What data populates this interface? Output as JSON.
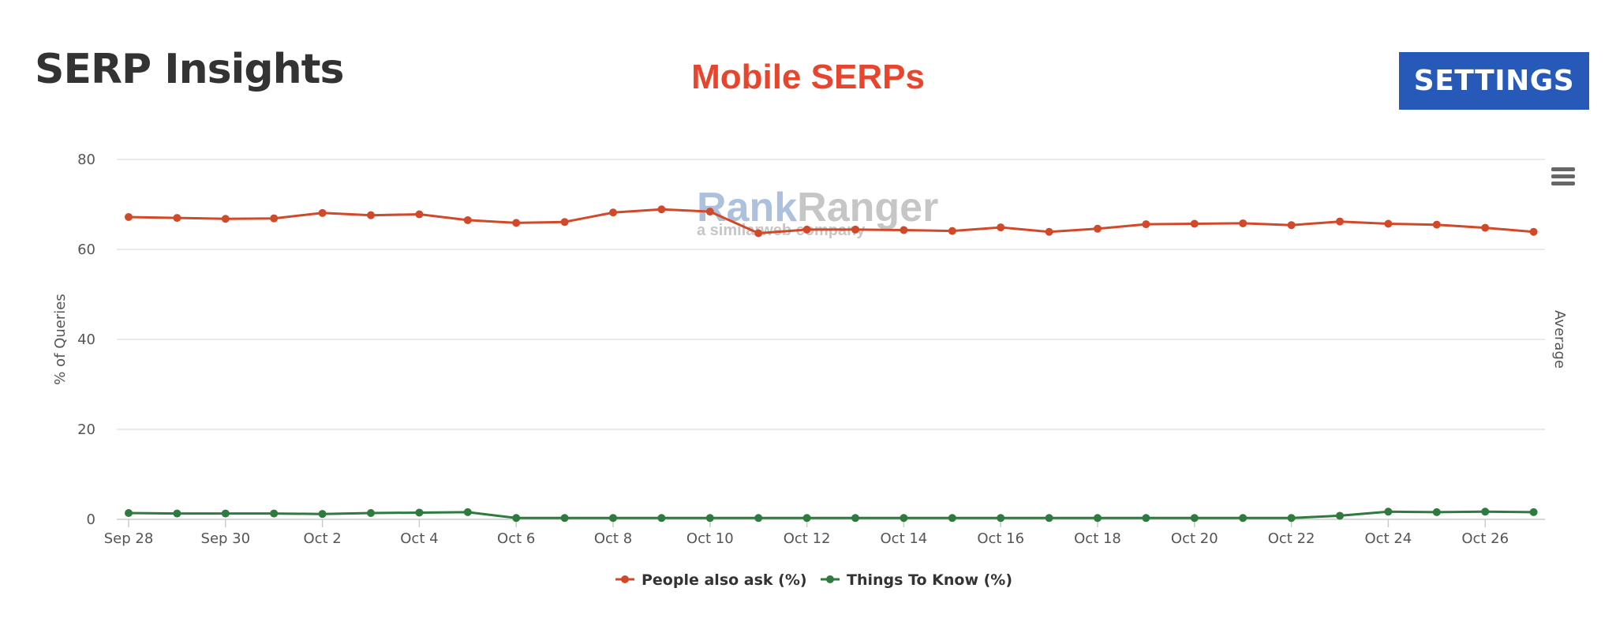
{
  "header": {
    "title": "SERP Insights",
    "subtitle": "Mobile SERPs",
    "settings_label": "SETTINGS",
    "menu_icon": "hamburger-menu-icon"
  },
  "watermark": {
    "brand_left": "Rank",
    "brand_right": "Ranger",
    "tagline": "a similarweb company"
  },
  "colors": {
    "title": "#333333",
    "subtitle": "#e8452e",
    "settings_bg": "#2659b8",
    "settings_text": "#ffffff",
    "people_also_ask": "#d04a2a",
    "things_to_know": "#2f7a3e",
    "grid": "#e3e3e3",
    "watermark_blue": "#9fb6d9",
    "watermark_grey": "#bdbdbd"
  },
  "chart_data": {
    "type": "line",
    "title": "",
    "subtitle": "Mobile SERPs",
    "ylabel": "% of Queries",
    "right_axis_label": "Average",
    "ylim": [
      0,
      80
    ],
    "yticks": [
      0,
      20,
      40,
      60,
      80
    ],
    "grid": true,
    "legend_position": "bottom-center",
    "x": [
      "Sep 28",
      "Sep 29",
      "Sep 30",
      "Oct 1",
      "Oct 2",
      "Oct 3",
      "Oct 4",
      "Oct 5",
      "Oct 6",
      "Oct 7",
      "Oct 8",
      "Oct 9",
      "Oct 10",
      "Oct 11",
      "Oct 12",
      "Oct 13",
      "Oct 14",
      "Oct 15",
      "Oct 16",
      "Oct 17",
      "Oct 18",
      "Oct 19",
      "Oct 20",
      "Oct 21",
      "Oct 22",
      "Oct 23",
      "Oct 24",
      "Oct 25",
      "Oct 26",
      "Oct 27"
    ],
    "xtick_labels": [
      "Sep 28",
      "Sep 30",
      "Oct 2",
      "Oct 4",
      "Oct 6",
      "Oct 8",
      "Oct 10",
      "Oct 12",
      "Oct 14",
      "Oct 16",
      "Oct 18",
      "Oct 20",
      "Oct 22",
      "Oct 24",
      "Oct 26"
    ],
    "series": [
      {
        "name": "People also ask (%)",
        "color": "#d04a2a",
        "values": [
          67.2,
          67.0,
          66.8,
          66.9,
          68.1,
          67.6,
          67.8,
          66.5,
          65.9,
          66.1,
          68.2,
          68.9,
          68.4,
          63.6,
          64.4,
          64.4,
          64.3,
          64.1,
          64.9,
          63.9,
          64.6,
          65.6,
          65.7,
          65.8,
          65.4,
          66.2,
          65.7,
          65.5,
          64.8,
          63.9
        ]
      },
      {
        "name": "Things To Know (%)",
        "color": "#2f7a3e",
        "values": [
          1.4,
          1.3,
          1.3,
          1.3,
          1.2,
          1.4,
          1.5,
          1.6,
          0.3,
          0.3,
          0.3,
          0.3,
          0.3,
          0.3,
          0.3,
          0.3,
          0.3,
          0.3,
          0.3,
          0.3,
          0.3,
          0.3,
          0.3,
          0.3,
          0.3,
          0.8,
          1.7,
          1.6,
          1.7,
          1.6
        ]
      }
    ]
  }
}
